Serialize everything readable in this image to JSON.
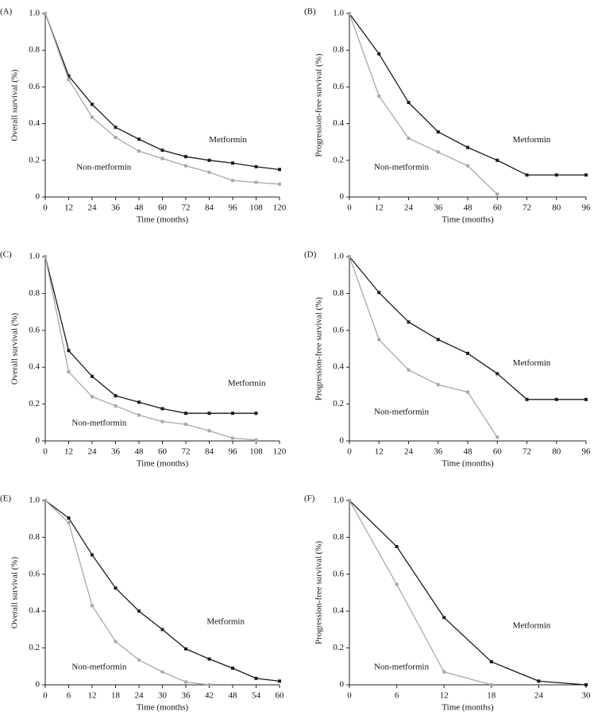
{
  "chart_data": [
    {
      "type": "line",
      "panel": "(A)",
      "ylabel": "Overall survival (%)",
      "xlabel": "Time (months)",
      "categories": [
        "0",
        "12",
        "24",
        "36",
        "48",
        "60",
        "72",
        "84",
        "96",
        "108",
        "120"
      ],
      "ylim": [
        0,
        1
      ],
      "yticks": [
        0,
        0.2,
        0.4,
        0.6,
        0.8,
        {
          "value": 1,
          "label": "1.0"
        }
      ],
      "series": [
        {
          "name": "Metformin",
          "color": "#1a1a1a",
          "values": [
            1.0,
            0.66,
            0.505,
            0.38,
            0.315,
            0.255,
            0.22,
            0.2,
            0.185,
            0.165,
            0.15
          ]
        },
        {
          "name": "Non-metformin",
          "color": "#a8a8a8",
          "values": [
            1.0,
            0.64,
            0.435,
            0.325,
            0.25,
            0.21,
            0.17,
            0.135,
            0.09,
            0.08,
            0.07
          ]
        }
      ]
    },
    {
      "type": "line",
      "panel": "(B)",
      "ylabel": "Progression-free survival (%)",
      "xlabel": "Time (months)",
      "categories": [
        "0",
        "12",
        "24",
        "36",
        "48",
        "60",
        "72",
        "80",
        "96"
      ],
      "ylim": [
        0,
        1
      ],
      "yticks": [
        0,
        0.2,
        0.4,
        0.6,
        0.8,
        {
          "value": 1,
          "label": "1.0"
        }
      ],
      "series": [
        {
          "name": "Metformin",
          "color": "#1a1a1a",
          "values": [
            1.0,
            0.78,
            0.515,
            0.355,
            0.27,
            0.2,
            0.12,
            0.12,
            0.12
          ]
        },
        {
          "name": "Non-metformin",
          "color": "#a8a8a8",
          "values": [
            1.0,
            0.55,
            0.32,
            0.245,
            0.17,
            0.015,
            null,
            null,
            null
          ]
        }
      ]
    },
    {
      "type": "line",
      "panel": "(C)",
      "ylabel": "Overall survival (%)",
      "xlabel": "Time (months)",
      "categories": [
        "0",
        "12",
        "24",
        "36",
        "48",
        "60",
        "72",
        "84",
        "96",
        "108",
        "120"
      ],
      "ylim": [
        0,
        1
      ],
      "yticks": [
        0,
        0.2,
        0.4,
        0.6,
        0.8,
        {
          "value": 1,
          "label": "1.0"
        }
      ],
      "series": [
        {
          "name": "Metformin",
          "color": "#1a1a1a",
          "values": [
            1.0,
            0.49,
            0.35,
            0.245,
            0.21,
            0.175,
            0.15,
            0.15,
            0.15,
            0.15,
            null
          ]
        },
        {
          "name": "Non-metformin",
          "color": "#a8a8a8",
          "values": [
            1.0,
            0.375,
            0.24,
            0.19,
            0.14,
            0.105,
            0.09,
            0.055,
            0.015,
            0.005,
            null
          ]
        }
      ]
    },
    {
      "type": "line",
      "panel": "(D)",
      "ylabel": "Progression-free survival (%)",
      "xlabel": "Time (months)",
      "categories": [
        "0",
        "12",
        "24",
        "36",
        "48",
        "60",
        "72",
        "80",
        "96"
      ],
      "ylim": [
        0,
        1
      ],
      "yticks": [
        0,
        0.2,
        0.4,
        0.6,
        0.8,
        {
          "value": 1,
          "label": "1.0"
        }
      ],
      "series": [
        {
          "name": "Metformin",
          "color": "#1a1a1a",
          "values": [
            1.0,
            0.805,
            0.645,
            0.55,
            0.475,
            0.365,
            0.225,
            0.225,
            0.225
          ]
        },
        {
          "name": "Non-metformin",
          "color": "#a8a8a8",
          "values": [
            1.0,
            0.55,
            0.385,
            0.305,
            0.265,
            0.02,
            null,
            null,
            null
          ]
        }
      ]
    },
    {
      "type": "line",
      "panel": "(E)",
      "ylabel": "Overall survival (%)",
      "xlabel": "Time (months)",
      "categories": [
        "0",
        "6",
        "12",
        "18",
        "24",
        "30",
        "36",
        "42",
        "48",
        "54",
        "60"
      ],
      "ylim": [
        0,
        1
      ],
      "yticks": [
        0,
        0.2,
        0.4,
        0.6,
        0.8,
        {
          "value": 1,
          "label": "1.0"
        }
      ],
      "series": [
        {
          "name": "Metformin",
          "color": "#1a1a1a",
          "values": [
            1.0,
            0.905,
            0.705,
            0.525,
            0.4,
            0.3,
            0.195,
            0.14,
            0.09,
            0.035,
            0.02
          ]
        },
        {
          "name": "Non-metformin",
          "color": "#a8a8a8",
          "values": [
            1.0,
            0.88,
            0.43,
            0.235,
            0.135,
            0.07,
            0.015,
            0.0,
            null,
            null,
            null
          ]
        }
      ]
    },
    {
      "type": "line",
      "panel": "(F)",
      "ylabel": "Progression-free survival (%)",
      "xlabel": "Time (months)",
      "categories": [
        "0",
        "6",
        "12",
        "18",
        "24",
        "30"
      ],
      "ylim": [
        0,
        1
      ],
      "yticks": [
        0,
        0.2,
        0.4,
        0.6,
        0.8,
        {
          "value": 1,
          "label": "1.0"
        }
      ],
      "series": [
        {
          "name": "Metformin",
          "color": "#1a1a1a",
          "values": [
            1.0,
            0.75,
            0.365,
            0.125,
            0.02,
            0.0
          ]
        },
        {
          "name": "Non-metformin",
          "color": "#a8a8a8",
          "values": [
            1.0,
            0.545,
            0.07,
            0.0,
            null,
            null
          ]
        }
      ]
    }
  ]
}
